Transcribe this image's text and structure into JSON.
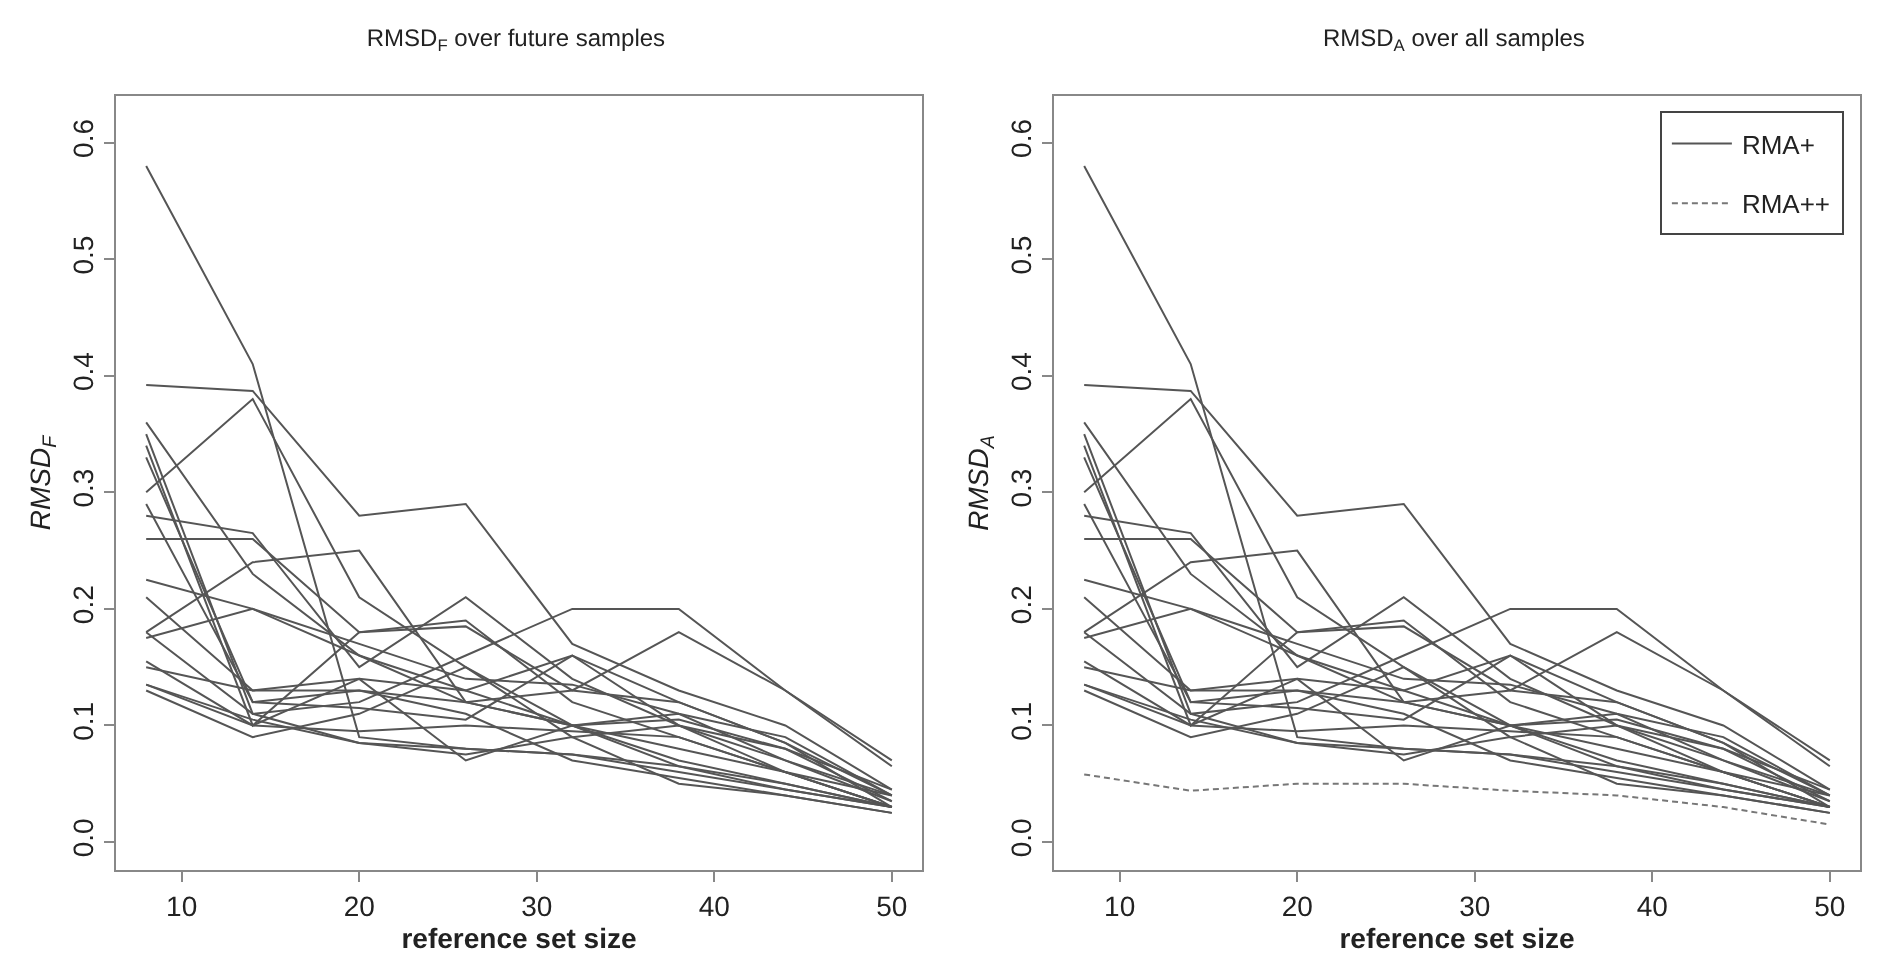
{
  "chart_data": [
    {
      "type": "line",
      "title": "RMSD$_{F}$ over future samples",
      "xlabel": "reference set size",
      "ylabel": "RMSD$_{F}$",
      "x": [
        8,
        14,
        20,
        26,
        32,
        38,
        44,
        50
      ],
      "xlim": [
        6.3,
        51.7
      ],
      "ylim": [
        -0.024,
        0.64
      ],
      "xticks": [
        10,
        20,
        30,
        40,
        50
      ],
      "yticks": [
        {
          "value": 0,
          "label": "0.0"
        },
        0.1,
        0.2,
        0.3,
        0.4,
        0.5,
        0.6
      ],
      "grid": false,
      "legend": false,
      "marker": "none",
      "series": [
        {
          "color": "#555555",
          "values": [
            0.58,
            0.41,
            0.09,
            0.08,
            0.075,
            0.06,
            0.045,
            0.03
          ]
        },
        {
          "color": "#555555",
          "values": [
            0.392,
            0.387,
            0.28,
            0.29,
            0.17,
            0.13,
            0.1,
            0.045
          ]
        },
        {
          "color": "#555555",
          "values": [
            0.3,
            0.38,
            0.21,
            0.15,
            0.1,
            0.105,
            0.08,
            0.035
          ]
        },
        {
          "color": "#555555",
          "values": [
            0.36,
            0.23,
            0.16,
            0.13,
            0.16,
            0.1,
            0.06,
            0.04
          ]
        },
        {
          "color": "#555555",
          "values": [
            0.35,
            0.11,
            0.12,
            0.16,
            0.2,
            0.2,
            0.13,
            0.07
          ]
        },
        {
          "color": "#555555",
          "values": [
            0.33,
            0.12,
            0.13,
            0.12,
            0.13,
            0.18,
            0.13,
            0.065
          ]
        },
        {
          "color": "#555555",
          "values": [
            0.28,
            0.265,
            0.15,
            0.21,
            0.14,
            0.1,
            0.07,
            0.04
          ]
        },
        {
          "color": "#555555",
          "values": [
            0.26,
            0.26,
            0.18,
            0.19,
            0.12,
            0.09,
            0.06,
            0.03
          ]
        },
        {
          "color": "#555555",
          "values": [
            0.18,
            0.24,
            0.25,
            0.12,
            0.1,
            0.11,
            0.07,
            0.035
          ]
        },
        {
          "color": "#555555",
          "values": [
            0.225,
            0.2,
            0.16,
            0.12,
            0.1,
            0.08,
            0.06,
            0.03
          ]
        },
        {
          "color": "#555555",
          "values": [
            0.21,
            0.13,
            0.14,
            0.13,
            0.1,
            0.07,
            0.05,
            0.03
          ]
        },
        {
          "color": "#555555",
          "values": [
            0.18,
            0.11,
            0.085,
            0.08,
            0.075,
            0.065,
            0.045,
            0.03
          ]
        },
        {
          "color": "#555555",
          "values": [
            0.175,
            0.2,
            0.17,
            0.14,
            0.135,
            0.11,
            0.09,
            0.04
          ]
        },
        {
          "color": "#555555",
          "values": [
            0.155,
            0.1,
            0.095,
            0.1,
            0.095,
            0.09,
            0.06,
            0.03
          ]
        },
        {
          "color": "#555555",
          "values": [
            0.135,
            0.105,
            0.085,
            0.075,
            0.09,
            0.05,
            0.04,
            0.025
          ]
        },
        {
          "color": "#555555",
          "values": [
            0.13,
            0.09,
            0.11,
            0.15,
            0.09,
            0.1,
            0.08,
            0.045
          ]
        },
        {
          "color": "#555555",
          "values": [
            0.135,
            0.1,
            0.14,
            0.07,
            0.1,
            0.065,
            0.05,
            0.03
          ]
        },
        {
          "color": "#555555",
          "values": [
            0.29,
            0.12,
            0.115,
            0.105,
            0.16,
            0.12,
            0.085,
            0.04
          ]
        },
        {
          "color": "#555555",
          "values": [
            0.34,
            0.1,
            0.18,
            0.185,
            0.13,
            0.12,
            0.085,
            0.03
          ]
        },
        {
          "color": "#555555",
          "values": [
            0.15,
            0.13,
            0.13,
            0.11,
            0.07,
            0.055,
            0.04,
            0.025
          ]
        }
      ]
    },
    {
      "type": "line",
      "title": "RMSD$_{A}$ over all samples",
      "xlabel": "reference set size",
      "ylabel": "RMSD$_{A}$",
      "x": [
        8,
        14,
        20,
        26,
        32,
        38,
        44,
        50
      ],
      "xlim": [
        6.3,
        51.7
      ],
      "ylim": [
        -0.024,
        0.64
      ],
      "xticks": [
        10,
        20,
        30,
        40,
        50
      ],
      "yticks": [
        {
          "value": 0,
          "label": "0.0"
        },
        0.1,
        0.2,
        0.3,
        0.4,
        0.5,
        0.6
      ],
      "grid": false,
      "legend": "top right",
      "marker": "none",
      "series": [
        {
          "name": "RMA+",
          "color": "#555555",
          "values": [
            0.58,
            0.41,
            0.09,
            0.08,
            0.075,
            0.06,
            0.045,
            0.03
          ]
        },
        {
          "color": "#555555",
          "values": [
            0.392,
            0.387,
            0.28,
            0.29,
            0.17,
            0.13,
            0.1,
            0.045
          ]
        },
        {
          "color": "#555555",
          "values": [
            0.3,
            0.38,
            0.21,
            0.15,
            0.1,
            0.105,
            0.08,
            0.035
          ]
        },
        {
          "color": "#555555",
          "values": [
            0.36,
            0.23,
            0.16,
            0.13,
            0.16,
            0.1,
            0.06,
            0.04
          ]
        },
        {
          "color": "#555555",
          "values": [
            0.35,
            0.11,
            0.12,
            0.16,
            0.2,
            0.2,
            0.13,
            0.07
          ]
        },
        {
          "color": "#555555",
          "values": [
            0.33,
            0.12,
            0.13,
            0.12,
            0.13,
            0.18,
            0.13,
            0.065
          ]
        },
        {
          "color": "#555555",
          "values": [
            0.28,
            0.265,
            0.15,
            0.21,
            0.14,
            0.1,
            0.07,
            0.04
          ]
        },
        {
          "color": "#555555",
          "values": [
            0.26,
            0.26,
            0.18,
            0.19,
            0.12,
            0.09,
            0.06,
            0.03
          ]
        },
        {
          "color": "#555555",
          "values": [
            0.18,
            0.24,
            0.25,
            0.12,
            0.1,
            0.11,
            0.07,
            0.035
          ]
        },
        {
          "color": "#555555",
          "values": [
            0.225,
            0.2,
            0.16,
            0.12,
            0.1,
            0.08,
            0.06,
            0.03
          ]
        },
        {
          "color": "#555555",
          "values": [
            0.21,
            0.13,
            0.14,
            0.13,
            0.1,
            0.07,
            0.05,
            0.03
          ]
        },
        {
          "color": "#555555",
          "values": [
            0.18,
            0.11,
            0.085,
            0.08,
            0.075,
            0.065,
            0.045,
            0.03
          ]
        },
        {
          "color": "#555555",
          "values": [
            0.175,
            0.2,
            0.17,
            0.14,
            0.135,
            0.11,
            0.09,
            0.04
          ]
        },
        {
          "color": "#555555",
          "values": [
            0.155,
            0.1,
            0.095,
            0.1,
            0.095,
            0.09,
            0.06,
            0.03
          ]
        },
        {
          "color": "#555555",
          "values": [
            0.135,
            0.105,
            0.085,
            0.075,
            0.09,
            0.05,
            0.04,
            0.025
          ]
        },
        {
          "color": "#555555",
          "values": [
            0.13,
            0.09,
            0.11,
            0.15,
            0.09,
            0.1,
            0.08,
            0.045
          ]
        },
        {
          "color": "#555555",
          "values": [
            0.135,
            0.1,
            0.14,
            0.07,
            0.1,
            0.065,
            0.05,
            0.03
          ]
        },
        {
          "color": "#555555",
          "values": [
            0.29,
            0.12,
            0.115,
            0.105,
            0.16,
            0.12,
            0.085,
            0.04
          ]
        },
        {
          "color": "#555555",
          "values": [
            0.34,
            0.1,
            0.18,
            0.185,
            0.13,
            0.12,
            0.085,
            0.03
          ]
        },
        {
          "color": "#555555",
          "values": [
            0.15,
            0.13,
            0.13,
            0.11,
            0.07,
            0.055,
            0.04,
            0.025
          ]
        },
        {
          "name": "RMA++",
          "color": "#777777",
          "line_style": "dashed",
          "values": [
            0.058,
            0.044,
            0.05,
            0.05,
            0.044,
            0.04,
            0.03,
            0.015
          ]
        }
      ]
    }
  ]
}
